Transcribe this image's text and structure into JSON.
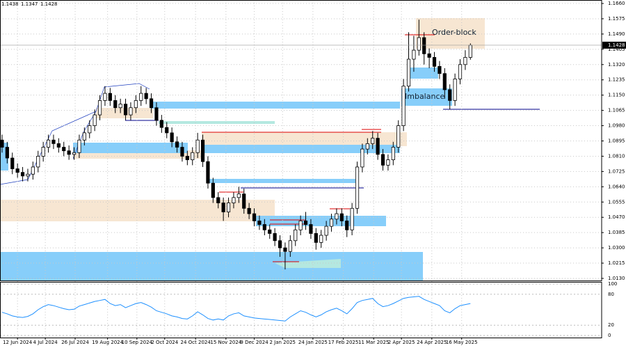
{
  "chart_data": [
    {
      "type": "candlestick",
      "open": [
        1.09,
        1.086,
        1.08,
        1.074,
        1.072,
        1.07,
        1.071,
        1.075,
        1.081,
        1.086,
        1.09,
        1.088,
        1.086,
        1.084,
        1.082,
        1.083,
        1.09,
        1.094,
        1.098,
        1.104,
        1.112,
        1.116,
        1.112,
        1.108,
        1.11,
        1.104,
        1.108,
        1.112,
        1.116,
        1.113,
        1.108,
        1.101,
        1.097,
        1.094,
        1.089,
        1.086,
        1.081,
        1.079,
        1.083,
        1.09,
        1.078,
        1.066,
        1.058,
        1.055,
        1.05,
        1.055,
        1.058,
        1.06,
        1.052,
        1.049,
        1.045,
        1.043,
        1.04,
        1.038,
        1.034,
        1.03,
        1.028,
        1.034,
        1.04,
        1.045,
        1.043,
        1.038,
        1.033,
        1.037,
        1.042,
        1.046,
        1.049,
        1.045,
        1.04,
        1.052,
        1.075,
        1.085,
        1.088,
        1.091,
        1.082,
        1.076,
        1.079,
        1.086,
        1.098,
        1.12,
        1.135,
        1.14,
        1.147,
        1.138,
        1.136,
        1.131,
        1.127,
        1.118,
        1.112,
        1.124,
        1.132,
        1.136
      ],
      "high": [
        1.093,
        1.089,
        1.083,
        1.077,
        1.075,
        1.074,
        1.078,
        1.084,
        1.089,
        1.093,
        1.093,
        1.091,
        1.089,
        1.087,
        1.086,
        1.093,
        1.097,
        1.101,
        1.107,
        1.115,
        1.12,
        1.119,
        1.115,
        1.113,
        1.113,
        1.111,
        1.115,
        1.12,
        1.119,
        1.116,
        1.111,
        1.104,
        1.1,
        1.097,
        1.092,
        1.089,
        1.084,
        1.086,
        1.094,
        1.093,
        1.081,
        1.069,
        1.061,
        1.058,
        1.058,
        1.061,
        1.064,
        1.063,
        1.055,
        1.052,
        1.048,
        1.046,
        1.043,
        1.041,
        1.037,
        1.033,
        1.037,
        1.043,
        1.048,
        1.05,
        1.046,
        1.041,
        1.04,
        1.045,
        1.049,
        1.052,
        1.052,
        1.048,
        1.055,
        1.078,
        1.088,
        1.091,
        1.095,
        1.094,
        1.085,
        1.082,
        1.089,
        1.101,
        1.124,
        1.15,
        1.148,
        1.157,
        1.15,
        1.141,
        1.139,
        1.134,
        1.13,
        1.121,
        1.127,
        1.135,
        1.14,
        1.1438
      ],
      "low": [
        1.083,
        1.077,
        1.071,
        1.069,
        1.067,
        1.067,
        1.068,
        1.072,
        1.078,
        1.083,
        1.085,
        1.083,
        1.081,
        1.079,
        1.079,
        1.08,
        1.087,
        1.091,
        1.095,
        1.101,
        1.109,
        1.109,
        1.105,
        1.105,
        1.101,
        1.101,
        1.105,
        1.109,
        1.11,
        1.105,
        1.098,
        1.094,
        1.091,
        1.086,
        1.083,
        1.078,
        1.076,
        1.076,
        1.08,
        1.075,
        1.063,
        1.055,
        1.052,
        1.045,
        1.047,
        1.052,
        1.055,
        1.049,
        1.046,
        1.042,
        1.04,
        1.037,
        1.035,
        1.031,
        1.025,
        1.018,
        1.025,
        1.031,
        1.037,
        1.04,
        1.035,
        1.029,
        1.03,
        1.034,
        1.039,
        1.043,
        1.042,
        1.036,
        1.037,
        1.049,
        1.072,
        1.082,
        1.085,
        1.079,
        1.073,
        1.073,
        1.076,
        1.083,
        1.095,
        1.117,
        1.128,
        1.137,
        1.132,
        1.13,
        1.128,
        1.124,
        1.113,
        1.107,
        1.109,
        1.121,
        1.129,
        1.1347
      ],
      "close": [
        1.086,
        1.08,
        1.074,
        1.072,
        1.07,
        1.071,
        1.075,
        1.081,
        1.086,
        1.09,
        1.088,
        1.086,
        1.084,
        1.082,
        1.083,
        1.09,
        1.094,
        1.098,
        1.104,
        1.112,
        1.116,
        1.112,
        1.108,
        1.11,
        1.104,
        1.108,
        1.112,
        1.116,
        1.113,
        1.108,
        1.101,
        1.097,
        1.094,
        1.089,
        1.086,
        1.081,
        1.079,
        1.083,
        1.09,
        1.078,
        1.066,
        1.058,
        1.055,
        1.05,
        1.055,
        1.058,
        1.06,
        1.052,
        1.049,
        1.045,
        1.043,
        1.04,
        1.038,
        1.034,
        1.03,
        1.028,
        1.034,
        1.04,
        1.045,
        1.043,
        1.038,
        1.033,
        1.037,
        1.042,
        1.046,
        1.049,
        1.045,
        1.04,
        1.052,
        1.075,
        1.085,
        1.088,
        1.091,
        1.082,
        1.076,
        1.079,
        1.086,
        1.098,
        1.12,
        1.135,
        1.14,
        1.147,
        1.138,
        1.136,
        1.131,
        1.127,
        1.118,
        1.112,
        1.124,
        1.132,
        1.136,
        1.1428
      ],
      "up_color": "#ffffff",
      "down_color": "#000000",
      "xlim": [
        -0.4,
        116.5
      ],
      "xticks": [
        {
          "value": 3.0,
          "label": "12 Jun 2024"
        },
        {
          "value": 8.4,
          "label": "4 Jul 2024"
        },
        {
          "value": 14.2,
          "label": "26 Jul 2024"
        },
        {
          "value": 20.5,
          "label": "19 Aug 2024"
        },
        {
          "value": 26.2,
          "label": "10 Sep 2024"
        },
        {
          "value": 31.6,
          "label": "2 Oct 2024"
        },
        {
          "value": 37.6,
          "label": "24 Oct 2024"
        },
        {
          "value": 43.5,
          "label": "15 Nov 2024"
        },
        {
          "value": 49.0,
          "label": "9 Dec 2024"
        },
        {
          "value": 54.5,
          "label": "2 Jan 2025"
        },
        {
          "value": 60.4,
          "label": "24 Jan 2025"
        },
        {
          "value": 66.3,
          "label": "17 Feb 2025"
        },
        {
          "value": 72.2,
          "label": "11 Mar 2025"
        },
        {
          "value": 77.6,
          "label": "2 Apr 2025"
        },
        {
          "value": 83.5,
          "label": "24 Apr 2025"
        },
        {
          "value": 89.3,
          "label": "16 May 2025"
        }
      ],
      "ylim": [
        1.013,
        1.166
      ],
      "yticks": [
        {
          "value": 1.166,
          "label": "1.1660"
        },
        1.1575,
        {
          "value": 1.149,
          "label": "1.1490"
        },
        1.1405,
        {
          "value": 1.132,
          "label": "1.1320"
        },
        1.1235,
        {
          "value": 1.115,
          "label": "1.1150"
        },
        1.1065,
        {
          "value": 1.098,
          "label": "1.0980"
        },
        1.0895,
        {
          "value": 1.081,
          "label": "1.0810"
        },
        1.0725,
        {
          "value": 1.064,
          "label": "1.0640"
        },
        1.0555,
        {
          "value": 1.047,
          "label": "1.0470"
        },
        1.0385,
        {
          "value": 1.03,
          "label": "1.0300"
        },
        1.0215,
        {
          "value": 1.013,
          "label": "1.0130"
        }
      ],
      "grid": true,
      "annotations": [
        "Order-block",
        "Imbalance"
      ]
    },
    {
      "type": "line",
      "color": "#1e90ff",
      "values": [
        45,
        42,
        38,
        36,
        35,
        37,
        42,
        50,
        56,
        60,
        58,
        55,
        52,
        50,
        51,
        57,
        60,
        63,
        66,
        68,
        70,
        62,
        58,
        60,
        54,
        58,
        62,
        64,
        60,
        55,
        48,
        45,
        42,
        38,
        36,
        33,
        32,
        38,
        46,
        40,
        33,
        30,
        32,
        30,
        38,
        42,
        44,
        38,
        36,
        34,
        33,
        32,
        31,
        30,
        29,
        28,
        36,
        42,
        48,
        45,
        40,
        36,
        40,
        46,
        50,
        53,
        48,
        42,
        52,
        64,
        68,
        70,
        72,
        62,
        56,
        58,
        62,
        67,
        72,
        74,
        75,
        76,
        70,
        66,
        62,
        58,
        48,
        44,
        52,
        58,
        60,
        62
      ],
      "ylim": [
        0,
        100
      ],
      "yticks": [
        100,
        80,
        20,
        0
      ]
    }
  ]
}
